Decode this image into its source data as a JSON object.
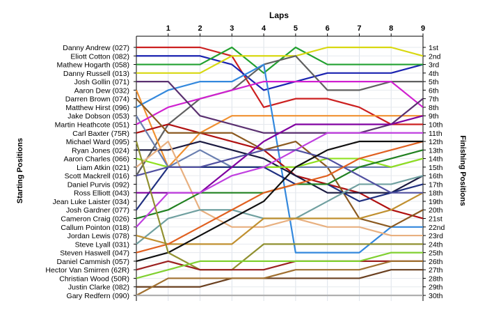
{
  "chart_data": {
    "type": "line",
    "title": "Laps",
    "ylabel_left": "Starting Positions",
    "ylabel_right": "Finishing Positions",
    "x_ticks": [
      "1",
      "2",
      "3",
      "4",
      "5",
      "6",
      "7",
      "8",
      "9"
    ],
    "x_range": [
      0,
      9
    ],
    "y_range": [
      1,
      30
    ],
    "y_inverted": true,
    "grid": true,
    "drivers": [
      "Danny Andrew (027)",
      "Eliott Cotton (082)",
      "Mathew Hogarth (058)",
      "Danny Russell (013)",
      "Josh Gollin (071)",
      "Aaron Dew (032)",
      "Darren Brown (074)",
      "Matthew Hirst (096)",
      "Jake Dobson (053)",
      "Martin Heathcote (051)",
      "Carl Baxter (75R)",
      "Michael Ward (095)",
      "Ryan Jones (024)",
      "Aaron Charles (066)",
      "Liam Atkin (021)",
      "Scott Mackrell (016)",
      "Daniel Purvis (092)",
      "Ross Elliott (043)",
      "Jean Luke Laister (034)",
      "Josh Gardner (077)",
      "Cameron Craig (026)",
      "Callum Pointon (018)",
      "Jordan Lewis (078)",
      "Steve Lyall (031)",
      "Steven Haswell (047)",
      "Daniel Cammish (057)",
      "Hector Van Smirren (62R)",
      "Christian Wood (50R)",
      "Justin Clarke (082)",
      "Gary Redfern (090)"
    ],
    "finishing_positions": [
      "1st",
      "2nd",
      "3rd",
      "4th",
      "5th",
      "6th",
      "7th",
      "8th",
      "9th",
      "10th",
      "11th",
      "12th",
      "13th",
      "14th",
      "15th",
      "16th",
      "17th",
      "18th",
      "19th",
      "20th",
      "21st",
      "22nd",
      "23rd",
      "24th",
      "25th",
      "26th",
      "27th",
      "28th",
      "29th",
      "30th"
    ],
    "series": [
      {
        "color": "#cc2020",
        "values": [
          1,
          1,
          1,
          2,
          8,
          7,
          7,
          8,
          10,
          10
        ]
      },
      {
        "color": "#1a22b0",
        "values": [
          2,
          2,
          2,
          3,
          6,
          5,
          4,
          4,
          4,
          3
        ]
      },
      {
        "color": "#22a030",
        "values": [
          3,
          3,
          3,
          1,
          4,
          1,
          3,
          3,
          3,
          3
        ]
      },
      {
        "color": "#d8d810",
        "values": [
          4,
          4,
          4,
          2,
          2,
          2,
          1,
          1,
          1,
          2
        ]
      },
      {
        "color": "#606060",
        "values": [
          16,
          10,
          7,
          6,
          3,
          2,
          6,
          6,
          5,
          5
        ]
      },
      {
        "color": "#f09030",
        "values": [
          6,
          15,
          11,
          9,
          9,
          9,
          9,
          9,
          9,
          9
        ]
      },
      {
        "color": "#3388dd",
        "values": [
          8,
          6,
          5,
          5,
          3,
          25,
          25,
          25,
          22,
          22
        ]
      },
      {
        "color": "#d020d0",
        "values": [
          10,
          8,
          7,
          6,
          5,
          5,
          5,
          5,
          5,
          8
        ]
      },
      {
        "color": "#5a3070",
        "values": [
          5,
          5,
          9,
          10,
          11,
          11,
          11,
          11,
          10,
          7
        ]
      },
      {
        "color": "#b01010",
        "values": [
          11,
          10,
          11,
          12,
          13,
          16,
          17,
          18,
          20,
          21
        ]
      },
      {
        "color": "#8b5a20",
        "values": [
          7,
          11,
          11,
          11,
          13,
          12,
          15,
          21,
          22,
          20
        ]
      },
      {
        "color": "#6a7fb0",
        "values": [
          9,
          15,
          13,
          15,
          15,
          15,
          15,
          15,
          15,
          14
        ]
      },
      {
        "color": "#1a1a40",
        "values": [
          13,
          13,
          12,
          13,
          14,
          16,
          18,
          18,
          18,
          16
        ]
      },
      {
        "color": "#90e020",
        "values": [
          14,
          15,
          15,
          15,
          15,
          15,
          14,
          14,
          15,
          14
        ]
      },
      {
        "color": "#e8b080",
        "values": [
          15,
          12,
          20,
          22,
          22,
          21,
          22,
          22,
          23,
          23
        ]
      },
      {
        "color": "#203080",
        "values": [
          20,
          15,
          15,
          15,
          15,
          17,
          17,
          19,
          18,
          17
        ]
      },
      {
        "color": "#208020",
        "values": [
          21,
          20,
          18,
          18,
          18,
          17,
          17,
          15,
          14,
          13
        ]
      },
      {
        "color": "#8000a0",
        "values": [
          18,
          18,
          18,
          15,
          12,
          10,
          10,
          10,
          10,
          9
        ]
      },
      {
        "color": "#70a0a0",
        "values": [
          24,
          21,
          20,
          20,
          21,
          21,
          19,
          17,
          17,
          16
        ]
      },
      {
        "color": "#c040e0",
        "values": [
          22,
          18,
          18,
          16,
          15,
          13,
          11,
          11,
          11,
          11
        ]
      },
      {
        "color": "#c09030",
        "values": [
          23,
          24,
          24,
          24,
          21,
          21,
          21,
          21,
          20,
          18
        ]
      },
      {
        "color": "#5050a0",
        "values": [
          16,
          15,
          15,
          14,
          13,
          13,
          14,
          16,
          18,
          18
        ]
      },
      {
        "color": "#e06020",
        "values": [
          25,
          24,
          22,
          20,
          18,
          17,
          16,
          14,
          13,
          12
        ]
      },
      {
        "color": "#101010",
        "values": [
          26,
          25,
          23,
          21,
          19,
          15,
          13,
          12,
          12,
          12
        ]
      },
      {
        "color": "#909030",
        "values": [
          12,
          25,
          27,
          27,
          24,
          24,
          24,
          24,
          24,
          24
        ]
      },
      {
        "color": "#9b2020",
        "values": [
          27,
          26,
          27,
          27,
          27,
          26,
          26,
          26,
          26,
          26
        ]
      },
      {
        "color": "#80d030",
        "values": [
          28,
          27,
          26,
          26,
          26,
          26,
          26,
          26,
          25,
          25
        ]
      },
      {
        "color": "#6a4020",
        "values": [
          29,
          29,
          29,
          28,
          28,
          28,
          28,
          28,
          27,
          27
        ]
      },
      {
        "color": "#a07030",
        "values": [
          30,
          28,
          28,
          28,
          28,
          27,
          27,
          27,
          26,
          26
        ]
      },
      {
        "color": "#b0b0b0",
        "values": [
          30,
          30,
          30,
          30,
          30,
          30,
          30,
          30,
          30,
          30
        ]
      }
    ]
  }
}
